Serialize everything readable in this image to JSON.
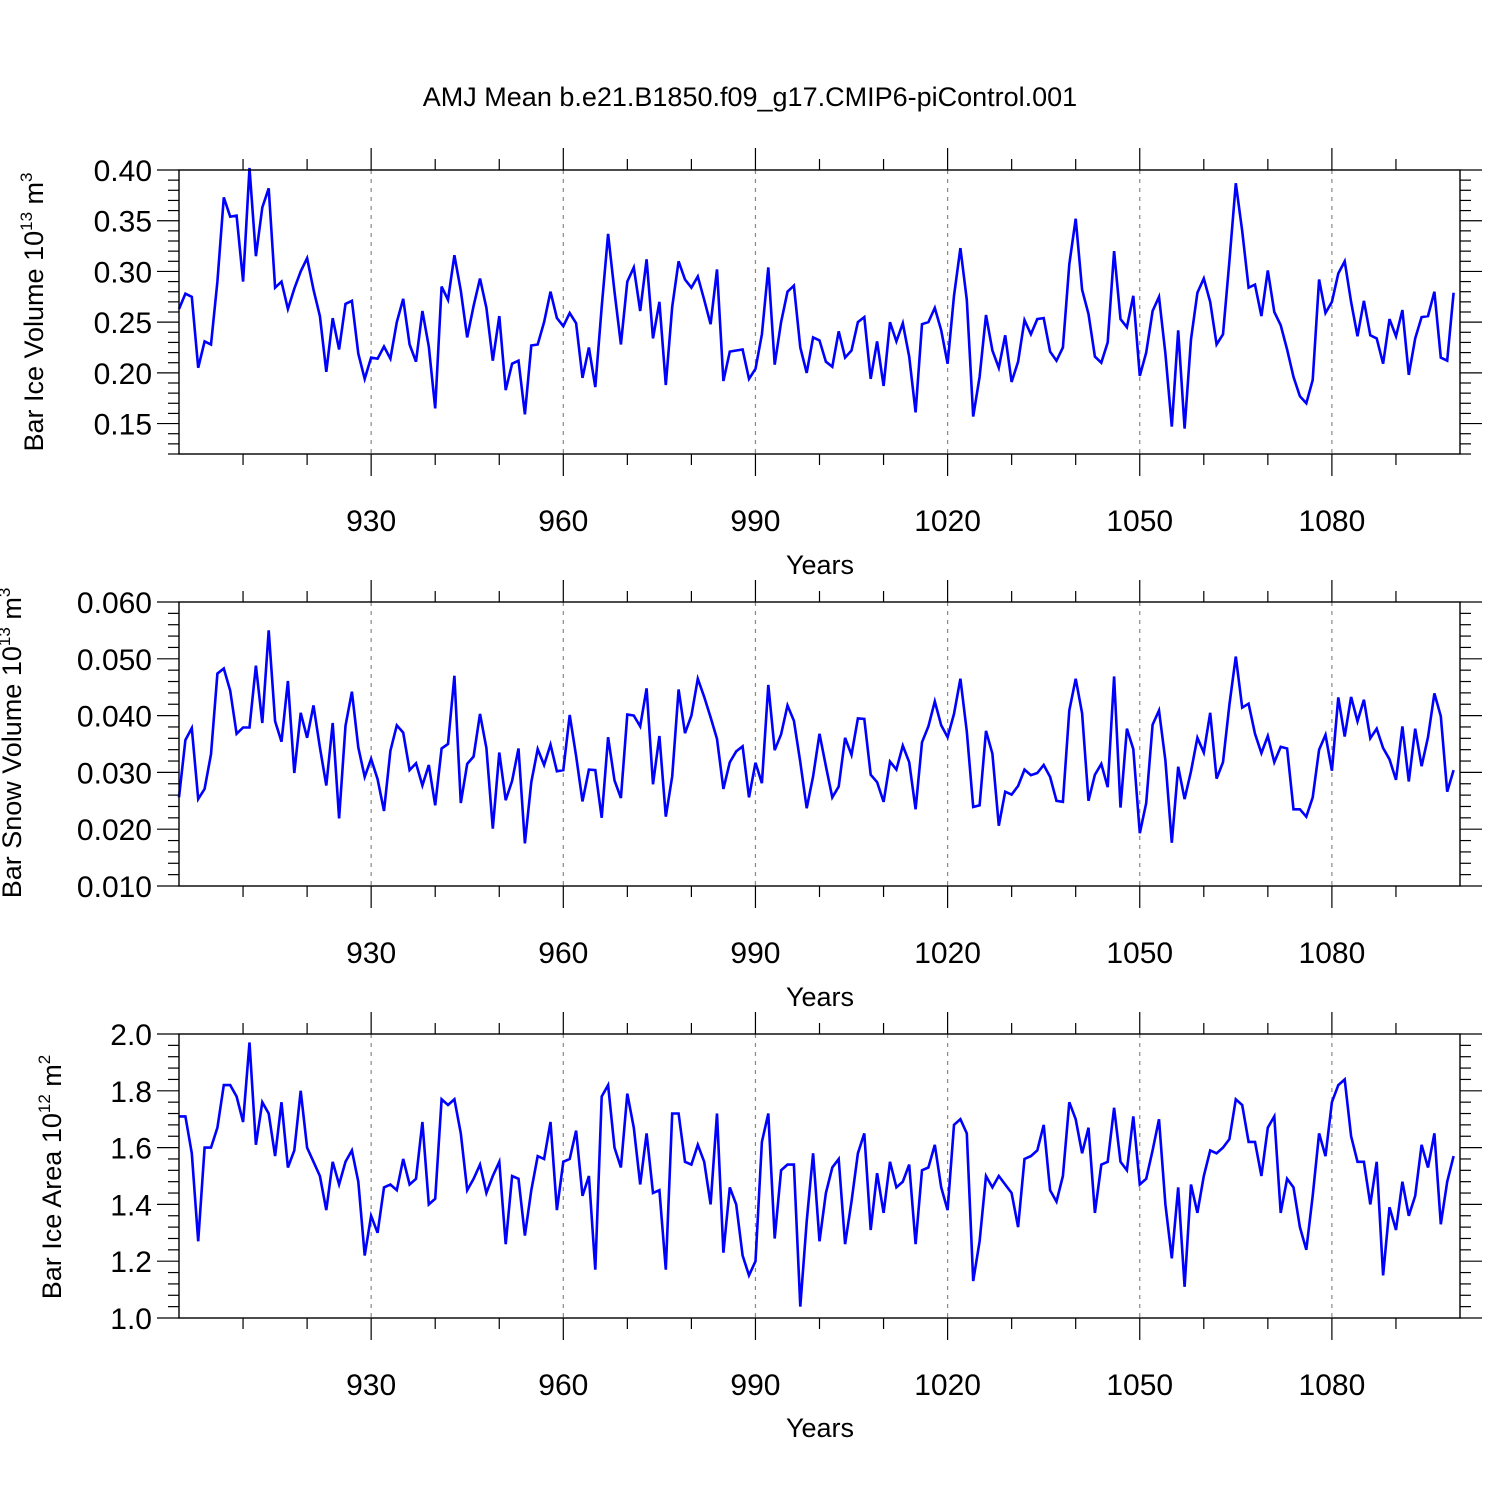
{
  "title": "AMJ Mean b.e21.B1850.f09_g17.CMIP6-piControl.001",
  "colors": {
    "line": "#0000ff",
    "axis": "#000000",
    "grid": "#888888"
  },
  "chart_data": [
    {
      "type": "line",
      "name": "ice-volume",
      "ylabel": "Bar Ice Volume",
      "ylabel_unit_base": "10",
      "ylabel_unit_exp": "13",
      "ylabel_unit_tail": "m",
      "ylabel_unit_tail_exp": "3",
      "xlabel": "Years",
      "xlim": [
        900,
        1100
      ],
      "ylim": [
        0.12,
        0.4
      ],
      "xticks": [
        930,
        960,
        990,
        1020,
        1050,
        1080
      ],
      "yticks": [
        0.15,
        0.2,
        0.25,
        0.3,
        0.35,
        0.4
      ],
      "ytick_labels": [
        "0.15",
        "0.20",
        "0.25",
        "0.30",
        "0.35",
        "0.40"
      ],
      "grid": "vertical dashed at x ticks",
      "x_start": 900,
      "values": [
        0.263,
        0.278,
        0.275,
        0.205,
        0.231,
        0.228,
        0.29,
        0.373,
        0.354,
        0.355,
        0.29,
        0.402,
        0.315,
        0.363,
        0.382,
        0.284,
        0.29,
        0.263,
        0.283,
        0.3,
        0.313,
        0.282,
        0.256,
        0.201,
        0.254,
        0.223,
        0.268,
        0.271,
        0.219,
        0.194,
        0.215,
        0.214,
        0.226,
        0.214,
        0.25,
        0.273,
        0.228,
        0.211,
        0.261,
        0.226,
        0.165,
        0.285,
        0.272,
        0.316,
        0.281,
        0.235,
        0.266,
        0.293,
        0.264,
        0.212,
        0.256,
        0.183,
        0.209,
        0.212,
        0.159,
        0.227,
        0.228,
        0.25,
        0.28,
        0.254,
        0.246,
        0.259,
        0.249,
        0.195,
        0.225,
        0.186,
        0.265,
        0.337,
        0.28,
        0.228,
        0.29,
        0.304,
        0.261,
        0.312,
        0.234,
        0.27,
        0.188,
        0.265,
        0.31,
        0.292,
        0.284,
        0.295,
        0.272,
        0.248,
        0.302,
        0.192,
        0.221,
        0.222,
        0.223,
        0.194,
        0.204,
        0.238,
        0.304,
        0.208,
        0.25,
        0.28,
        0.286,
        0.225,
        0.2,
        0.235,
        0.232,
        0.211,
        0.206,
        0.241,
        0.215,
        0.222,
        0.25,
        0.255,
        0.194,
        0.231,
        0.187,
        0.25,
        0.231,
        0.249,
        0.216,
        0.161,
        0.248,
        0.25,
        0.264,
        0.242,
        0.209,
        0.276,
        0.323,
        0.272,
        0.157,
        0.196,
        0.257,
        0.222,
        0.205,
        0.237,
        0.191,
        0.211,
        0.252,
        0.238,
        0.253,
        0.254,
        0.221,
        0.212,
        0.225,
        0.307,
        0.352,
        0.282,
        0.258,
        0.216,
        0.21,
        0.23,
        0.32,
        0.253,
        0.245,
        0.276,
        0.197,
        0.22,
        0.261,
        0.275,
        0.219,
        0.147,
        0.242,
        0.145,
        0.233,
        0.279,
        0.293,
        0.27,
        0.228,
        0.238,
        0.31,
        0.387,
        0.34,
        0.284,
        0.287,
        0.256,
        0.301,
        0.26,
        0.247,
        0.223,
        0.196,
        0.177,
        0.17,
        0.193,
        0.292,
        0.259,
        0.27,
        0.298,
        0.31,
        0.27,
        0.236,
        0.271,
        0.237,
        0.234,
        0.209,
        0.253,
        0.236,
        0.262,
        0.198,
        0.234,
        0.255,
        0.256,
        0.28,
        0.215,
        0.212,
        0.279
      ]
    },
    {
      "type": "line",
      "name": "snow-volume",
      "ylabel": "Bar Snow Volume",
      "ylabel_unit_base": "10",
      "ylabel_unit_exp": "13",
      "ylabel_unit_tail": "m",
      "ylabel_unit_tail_exp": "3",
      "xlabel": "Years",
      "xlim": [
        900,
        1100
      ],
      "ylim": [
        0.01,
        0.06
      ],
      "xticks": [
        930,
        960,
        990,
        1020,
        1050,
        1080
      ],
      "yticks": [
        0.01,
        0.02,
        0.03,
        0.04,
        0.05,
        0.06
      ],
      "ytick_labels": [
        "0.010",
        "0.020",
        "0.030",
        "0.040",
        "0.050",
        "0.060"
      ],
      "grid": "vertical dashed at x ticks",
      "x_start": 900,
      "values": [
        0.0256,
        0.0357,
        0.0378,
        0.0253,
        0.0271,
        0.0332,
        0.0474,
        0.0483,
        0.0444,
        0.0368,
        0.0379,
        0.0379,
        0.0488,
        0.0387,
        0.055,
        0.039,
        0.0354,
        0.0461,
        0.0299,
        0.0405,
        0.0361,
        0.0418,
        0.0344,
        0.0277,
        0.0387,
        0.0219,
        0.0382,
        0.0442,
        0.0344,
        0.0292,
        0.0324,
        0.0288,
        0.0232,
        0.0338,
        0.0383,
        0.037,
        0.0304,
        0.0316,
        0.0277,
        0.0313,
        0.0242,
        0.0342,
        0.035,
        0.047,
        0.0246,
        0.0315,
        0.0328,
        0.0403,
        0.0343,
        0.0201,
        0.0335,
        0.0251,
        0.0285,
        0.0342,
        0.0175,
        0.0283,
        0.0341,
        0.0313,
        0.0349,
        0.0302,
        0.0304,
        0.0401,
        0.0329,
        0.0249,
        0.0305,
        0.0304,
        0.022,
        0.0362,
        0.0286,
        0.0255,
        0.0402,
        0.04,
        0.0381,
        0.0448,
        0.0279,
        0.0364,
        0.0222,
        0.0293,
        0.0446,
        0.0369,
        0.04,
        0.0465,
        0.0433,
        0.0397,
        0.0359,
        0.0271,
        0.0318,
        0.0337,
        0.0346,
        0.0256,
        0.0317,
        0.0281,
        0.0454,
        0.0339,
        0.0367,
        0.0418,
        0.0391,
        0.0318,
        0.0237,
        0.0293,
        0.0368,
        0.0311,
        0.0256,
        0.0275,
        0.0361,
        0.0331,
        0.0395,
        0.0394,
        0.0296,
        0.0283,
        0.0248,
        0.0319,
        0.0305,
        0.0347,
        0.0318,
        0.0235,
        0.0353,
        0.0381,
        0.0425,
        0.0383,
        0.0362,
        0.0403,
        0.0465,
        0.0372,
        0.0239,
        0.0242,
        0.0373,
        0.0333,
        0.0206,
        0.0266,
        0.0261,
        0.0276,
        0.0305,
        0.0295,
        0.0299,
        0.0313,
        0.0292,
        0.025,
        0.0248,
        0.0409,
        0.0465,
        0.0404,
        0.025,
        0.0296,
        0.0315,
        0.0274,
        0.0469,
        0.0238,
        0.0377,
        0.0341,
        0.0193,
        0.0246,
        0.0384,
        0.0409,
        0.0321,
        0.0176,
        0.031,
        0.0253,
        0.0302,
        0.0361,
        0.0335,
        0.0405,
        0.0289,
        0.0318,
        0.0419,
        0.0504,
        0.0414,
        0.0421,
        0.0368,
        0.0334,
        0.0364,
        0.0318,
        0.0345,
        0.0342,
        0.0235,
        0.0235,
        0.0222,
        0.0256,
        0.034,
        0.0366,
        0.0303,
        0.0432,
        0.0363,
        0.0433,
        0.039,
        0.0428,
        0.036,
        0.0377,
        0.0343,
        0.0323,
        0.0287,
        0.0381,
        0.0284,
        0.0377,
        0.0311,
        0.0362,
        0.0439,
        0.0399,
        0.0266,
        0.0304
      ]
    },
    {
      "type": "line",
      "name": "ice-area",
      "ylabel": "Bar Ice Area",
      "ylabel_unit_base": "10",
      "ylabel_unit_exp": "12",
      "ylabel_unit_tail": "m",
      "ylabel_unit_tail_exp": "2",
      "xlabel": "Years",
      "xlim": [
        900,
        1100
      ],
      "ylim": [
        1.0,
        2.0
      ],
      "xticks": [
        930,
        960,
        990,
        1020,
        1050,
        1080
      ],
      "yticks": [
        1.0,
        1.2,
        1.4,
        1.6,
        1.8,
        2.0
      ],
      "ytick_labels": [
        "1.0",
        "1.2",
        "1.4",
        "1.6",
        "1.8",
        "2.0"
      ],
      "grid": "vertical dashed at x ticks",
      "x_start": 900,
      "values": [
        1.71,
        1.71,
        1.58,
        1.27,
        1.6,
        1.6,
        1.67,
        1.82,
        1.82,
        1.78,
        1.69,
        1.97,
        1.61,
        1.76,
        1.72,
        1.57,
        1.76,
        1.53,
        1.59,
        1.8,
        1.6,
        1.55,
        1.5,
        1.38,
        1.55,
        1.47,
        1.55,
        1.59,
        1.48,
        1.22,
        1.36,
        1.3,
        1.46,
        1.47,
        1.45,
        1.56,
        1.47,
        1.49,
        1.69,
        1.4,
        1.42,
        1.77,
        1.75,
        1.77,
        1.65,
        1.45,
        1.49,
        1.54,
        1.44,
        1.5,
        1.55,
        1.26,
        1.5,
        1.49,
        1.29,
        1.45,
        1.57,
        1.56,
        1.69,
        1.38,
        1.55,
        1.56,
        1.66,
        1.43,
        1.5,
        1.17,
        1.78,
        1.82,
        1.6,
        1.53,
        1.79,
        1.67,
        1.47,
        1.65,
        1.44,
        1.45,
        1.17,
        1.72,
        1.72,
        1.55,
        1.54,
        1.61,
        1.55,
        1.4,
        1.72,
        1.23,
        1.46,
        1.4,
        1.22,
        1.15,
        1.2,
        1.62,
        1.72,
        1.28,
        1.52,
        1.54,
        1.54,
        1.04,
        1.34,
        1.58,
        1.27,
        1.44,
        1.53,
        1.56,
        1.26,
        1.41,
        1.58,
        1.65,
        1.31,
        1.51,
        1.37,
        1.55,
        1.46,
        1.48,
        1.54,
        1.26,
        1.52,
        1.53,
        1.61,
        1.46,
        1.38,
        1.68,
        1.7,
        1.65,
        1.13,
        1.27,
        1.5,
        1.46,
        1.5,
        1.47,
        1.44,
        1.32,
        1.56,
        1.57,
        1.59,
        1.68,
        1.45,
        1.41,
        1.5,
        1.76,
        1.7,
        1.58,
        1.67,
        1.37,
        1.54,
        1.55,
        1.74,
        1.55,
        1.52,
        1.71,
        1.47,
        1.49,
        1.59,
        1.7,
        1.4,
        1.21,
        1.46,
        1.11,
        1.47,
        1.37,
        1.5,
        1.59,
        1.58,
        1.6,
        1.63,
        1.77,
        1.75,
        1.62,
        1.62,
        1.5,
        1.67,
        1.71,
        1.37,
        1.49,
        1.46,
        1.32,
        1.24,
        1.43,
        1.65,
        1.57,
        1.76,
        1.82,
        1.84,
        1.64,
        1.55,
        1.55,
        1.4,
        1.55,
        1.15,
        1.39,
        1.31,
        1.48,
        1.36,
        1.43,
        1.61,
        1.53,
        1.65,
        1.33,
        1.48,
        1.57
      ]
    }
  ]
}
